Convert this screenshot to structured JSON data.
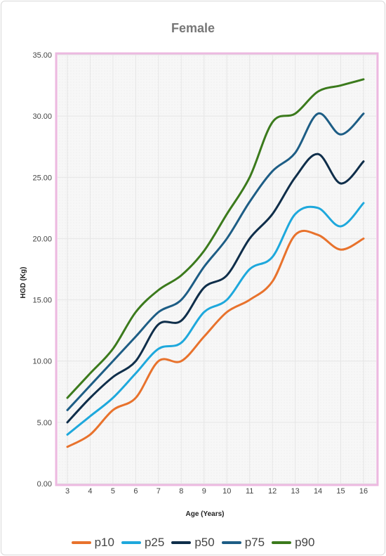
{
  "chart_data": {
    "type": "line",
    "title": "Female",
    "xlabel": "Age (Years)",
    "ylabel": "HGD (Kg)",
    "x": [
      3,
      4,
      5,
      6,
      7,
      8,
      9,
      10,
      11,
      12,
      13,
      14,
      15,
      16
    ],
    "x_tick_labels": [
      "3",
      "4",
      "5",
      "6",
      "7",
      "8",
      "9",
      "10",
      "11",
      "12",
      "13",
      "14",
      "15",
      "16"
    ],
    "ylim": [
      0,
      35
    ],
    "y_ticks": [
      0,
      5,
      10,
      15,
      20,
      25,
      30,
      35
    ],
    "y_tick_labels": [
      "0.00",
      "5.00",
      "10.00",
      "15.00",
      "20.00",
      "25.00",
      "30.00",
      "35.00"
    ],
    "grid": true,
    "legend_position": "bottom",
    "series": [
      {
        "name": "p10",
        "color": "#e8722c",
        "values": [
          3.0,
          4.0,
          6.0,
          7.0,
          10.0,
          10.0,
          12.0,
          14.0,
          15.0,
          16.5,
          20.3,
          20.3,
          19.1,
          20.0
        ]
      },
      {
        "name": "p25",
        "color": "#1ea8dc",
        "values": [
          4.0,
          5.5,
          7.0,
          9.0,
          11.0,
          11.5,
          14.0,
          15.0,
          17.5,
          18.5,
          22.0,
          22.5,
          21.0,
          22.9
        ]
      },
      {
        "name": "p50",
        "color": "#0f2e4a",
        "values": [
          5.0,
          7.0,
          8.7,
          10.0,
          13.0,
          13.3,
          16.0,
          17.0,
          20.0,
          22.0,
          25.0,
          26.9,
          24.5,
          26.3
        ]
      },
      {
        "name": "p75",
        "color": "#1d5d85",
        "values": [
          6.0,
          8.0,
          10.0,
          12.0,
          14.0,
          15.0,
          17.7,
          20.0,
          23.0,
          25.5,
          27.0,
          30.2,
          28.5,
          30.2
        ]
      },
      {
        "name": "p90",
        "color": "#3b7a1c",
        "values": [
          7.0,
          9.0,
          11.0,
          14.0,
          15.8,
          17.0,
          19.0,
          22.0,
          25.0,
          29.5,
          30.2,
          32.0,
          32.5,
          33.0
        ]
      }
    ]
  }
}
